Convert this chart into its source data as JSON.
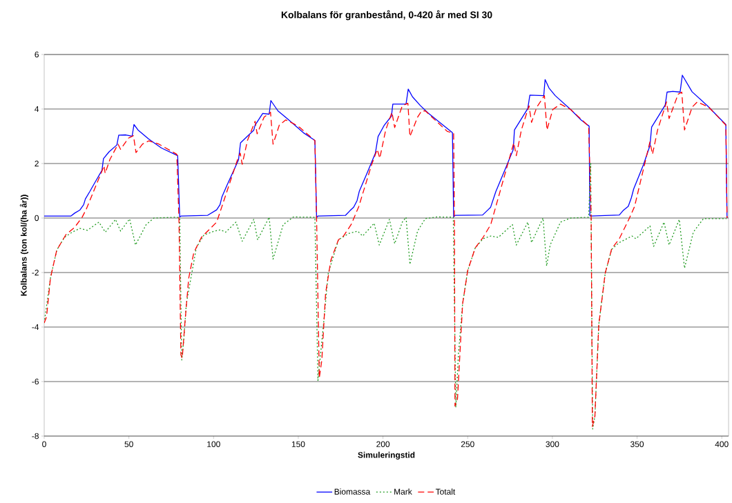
{
  "chart_data": {
    "type": "line",
    "title": "Kolbalans för granbestånd, 0-420 år med SI 30",
    "xlabel": "Simuleringstid",
    "ylabel": "Kolbalans (ton kol/(ha år))",
    "xlim": [
      0,
      404
    ],
    "ylim": [
      -8,
      6
    ],
    "xticks": [
      0,
      50,
      100,
      150,
      200,
      250,
      300,
      350,
      400
    ],
    "yticks": [
      -8,
      -6,
      -4,
      -2,
      0,
      2,
      4,
      6
    ],
    "grid": "y",
    "legend": "bottom",
    "series": [
      {
        "name": "Biomassa",
        "color": "#0000ff",
        "line_style": "solid",
        "x": [
          0,
          15.7,
          18,
          21,
          23.3,
          24.3,
          27,
          30,
          34.1,
          35,
          38.3,
          42.9,
          44,
          48.2,
          51.9,
          53,
          55.4,
          61.7,
          69.2,
          78.8,
          80,
          80.7,
          96.5,
          101.8,
          103.8,
          104.9,
          107.9,
          114.7,
          115.9,
          123.7,
          124.5,
          129,
          132.8,
          133.8,
          138,
          143.4,
          153,
          159.8,
          160.8,
          161.5,
          177.9,
          180.5,
          182.7,
          184.7,
          186,
          190.2,
          195.5,
          197.1,
          200.8,
          205,
          205.8,
          213.6,
          214.9,
          217.4,
          222,
          226.5,
          233.4,
          241,
          241.7,
          242.5,
          258.8,
          262,
          263.5,
          266.6,
          272.6,
          276.9,
          277.6,
          285.5,
          286.7,
          294.9,
          295.7,
          298,
          301.7,
          310.8,
          316.9,
          321.7,
          322.1,
          322.5,
          339.5,
          341.7,
          344.8,
          346.6,
          348,
          353.8,
          357.6,
          358.6,
          362.9,
          366.6,
          367.7,
          371.1,
          375.4,
          376.7,
          382.5,
          391.5,
          402.4,
          403.1
        ],
        "values": [
          0.07,
          0.07,
          0.18,
          0.29,
          0.49,
          0.7,
          0.98,
          1.31,
          1.75,
          2.18,
          2.43,
          2.68,
          3.04,
          3.05,
          3.0,
          3.43,
          3.23,
          2.9,
          2.57,
          2.29,
          0.04,
          0.07,
          0.1,
          0.3,
          0.49,
          0.77,
          1.2,
          2.13,
          2.76,
          3.22,
          3.41,
          3.84,
          3.81,
          4.31,
          3.93,
          3.65,
          3.13,
          2.85,
          0.02,
          0.07,
          0.1,
          0.27,
          0.4,
          0.64,
          0.98,
          1.59,
          2.38,
          2.99,
          3.41,
          3.74,
          4.18,
          4.18,
          4.73,
          4.45,
          4.13,
          3.86,
          3.51,
          3.13,
          0.04,
          0.1,
          0.11,
          0.3,
          0.39,
          0.97,
          1.86,
          2.51,
          3.23,
          4.02,
          4.51,
          4.49,
          5.08,
          4.77,
          4.49,
          3.98,
          3.6,
          3.37,
          0.09,
          0.07,
          0.11,
          0.27,
          0.43,
          0.74,
          1.07,
          1.96,
          2.66,
          3.34,
          3.77,
          4.15,
          4.62,
          4.65,
          4.62,
          5.24,
          4.63,
          4.12,
          3.43,
          0
        ]
      },
      {
        "name": "Mark",
        "color": "#1f9a1f",
        "line_style": "dotted",
        "x": [
          0,
          3.7,
          7.4,
          11.9,
          16.5,
          21,
          25.5,
          32.3,
          36.1,
          42.1,
          45.1,
          50.4,
          53.9,
          60.2,
          64.8,
          78.3,
          80,
          81.2,
          82.3,
          83.9,
          87.2,
          89.8,
          94.3,
          100.4,
          104.1,
          107.1,
          113.2,
          116.9,
          123.7,
          126,
          132.8,
          135.1,
          141.1,
          147.1,
          159.8,
          161.6,
          164.6,
          167.7,
          173.7,
          179.7,
          185,
          188,
          194.8,
          197.8,
          203.8,
          206.9,
          211.4,
          213.6,
          215.9,
          220.4,
          225,
          231.9,
          241.5,
          243,
          244.5,
          247,
          250,
          254.5,
          259.1,
          263.6,
          268.1,
          276.4,
          278.7,
          285.5,
          287.7,
          294.5,
          296.6,
          298.7,
          304.8,
          310.8,
          321.4,
          322.6,
          323.8,
          325.1,
          327.4,
          331.2,
          335,
          339.5,
          347,
          349.3,
          357.6,
          359.8,
          365.9,
          368.9,
          374.9,
          378,
          383.2,
          389.2,
          402.8
        ],
        "values": [
          -3.85,
          -2.2,
          -1.18,
          -0.71,
          -0.52,
          -0.38,
          -0.45,
          -0.15,
          -0.52,
          -0.05,
          -0.48,
          -0.03,
          -0.99,
          -0.24,
          0,
          0.03,
          0,
          -5.21,
          -4.55,
          -3.14,
          -2.0,
          -1.09,
          -0.62,
          -0.48,
          -0.43,
          -0.52,
          -0.15,
          -0.85,
          -0.05,
          -0.8,
          0.03,
          -1.51,
          -0.24,
          0.04,
          0.03,
          -5.96,
          -4.09,
          -2.02,
          -0.8,
          -0.57,
          -0.48,
          -0.66,
          -0.19,
          -0.99,
          -0.05,
          -0.94,
          -0.15,
          0.03,
          -1.7,
          -0.48,
          -0.02,
          0.04,
          0.03,
          -6.95,
          -5.02,
          -3.15,
          -1.93,
          -1.09,
          -0.76,
          -0.66,
          -0.71,
          -0.24,
          -0.99,
          -0.15,
          -0.9,
          0,
          -1.76,
          -0.99,
          -0.15,
          0,
          0.03,
          2.0,
          -7.74,
          -7.27,
          -3.9,
          -2.02,
          -1.15,
          -0.9,
          -0.66,
          -0.76,
          -0.29,
          -1.04,
          -0.15,
          -0.99,
          -0.05,
          -1.84,
          -0.52,
          -0.02,
          -0.02
        ]
      },
      {
        "name": "Totalt",
        "color": "#ff0000",
        "line_style": "dashed",
        "x": [
          0,
          1.4,
          3.7,
          7.4,
          12.7,
          18,
          22.5,
          24.8,
          33.8,
          35.3,
          36,
          38.8,
          43.6,
          45.1,
          49.7,
          52.7,
          54.2,
          58,
          61.7,
          67.8,
          78.3,
          79.6,
          80.7,
          81.5,
          83,
          85.3,
          88.3,
          92.8,
          101.8,
          104.9,
          113.9,
          115.7,
          116.9,
          120,
          124.5,
          125.7,
          129.8,
          133.6,
          135.1,
          138.8,
          142.6,
          147.3,
          150.9,
          159.8,
          160.9,
          162.4,
          163.9,
          166.1,
          169.2,
          173.7,
          176.7,
          181.2,
          185.7,
          193.3,
          196.6,
          198.1,
          201.6,
          205.3,
          206.9,
          211.4,
          214.7,
          215.9,
          220.4,
          222.8,
          225,
          237.9,
          241.7,
          242.2,
          242.5,
          244,
          247,
          250,
          254.5,
          259.1,
          263.6,
          266.6,
          277.2,
          278.7,
          281.7,
          286.2,
          287.7,
          290.8,
          295.3,
          296.8,
          300.2,
          304.8,
          310.8,
          321.4,
          322.9,
          323.6,
          325.1,
          327.4,
          331.2,
          335,
          339.5,
          345.5,
          348.5,
          357.6,
          359.1,
          362.1,
          367.4,
          368.9,
          374.2,
          376.4,
          378,
          382.5,
          385.5,
          392.3,
          402.4,
          403.1
        ],
        "values": [
          -3.85,
          -3.62,
          -2.2,
          -1.18,
          -0.62,
          -0.34,
          0.04,
          0.32,
          1.68,
          1.92,
          1.64,
          2.15,
          2.71,
          2.52,
          2.93,
          3.02,
          2.4,
          2.71,
          2.83,
          2.71,
          2.34,
          -0.19,
          -5.02,
          -5.14,
          -3.9,
          -2.21,
          -1.27,
          -0.71,
          -0.15,
          0.42,
          2.1,
          2.38,
          1.97,
          2.85,
          3.55,
          3.09,
          3.7,
          3.88,
          2.71,
          3.41,
          3.6,
          3.46,
          3.32,
          2.84,
          -0.34,
          -5.87,
          -5.21,
          -2.77,
          -1.55,
          -0.8,
          -0.66,
          -0.24,
          0.42,
          1.96,
          2.52,
          2.19,
          3.23,
          3.88,
          3.32,
          4.12,
          4.21,
          2.99,
          3.7,
          3.93,
          3.93,
          3.18,
          3.11,
          -0.34,
          -6.9,
          -6.62,
          -3.15,
          -1.93,
          -1.09,
          -0.71,
          -0.24,
          0.42,
          2.76,
          2.29,
          3.23,
          4.12,
          3.51,
          4.07,
          4.49,
          3.23,
          3.98,
          4.18,
          3.98,
          3.37,
          0.04,
          -7.65,
          -7.27,
          -3.9,
          -2.02,
          -1.13,
          -0.76,
          0,
          0.42,
          2.8,
          2.34,
          3.23,
          4.26,
          3.65,
          4.54,
          4.62,
          3.23,
          4.07,
          4.26,
          4.07,
          3.41,
          0
        ]
      }
    ]
  }
}
